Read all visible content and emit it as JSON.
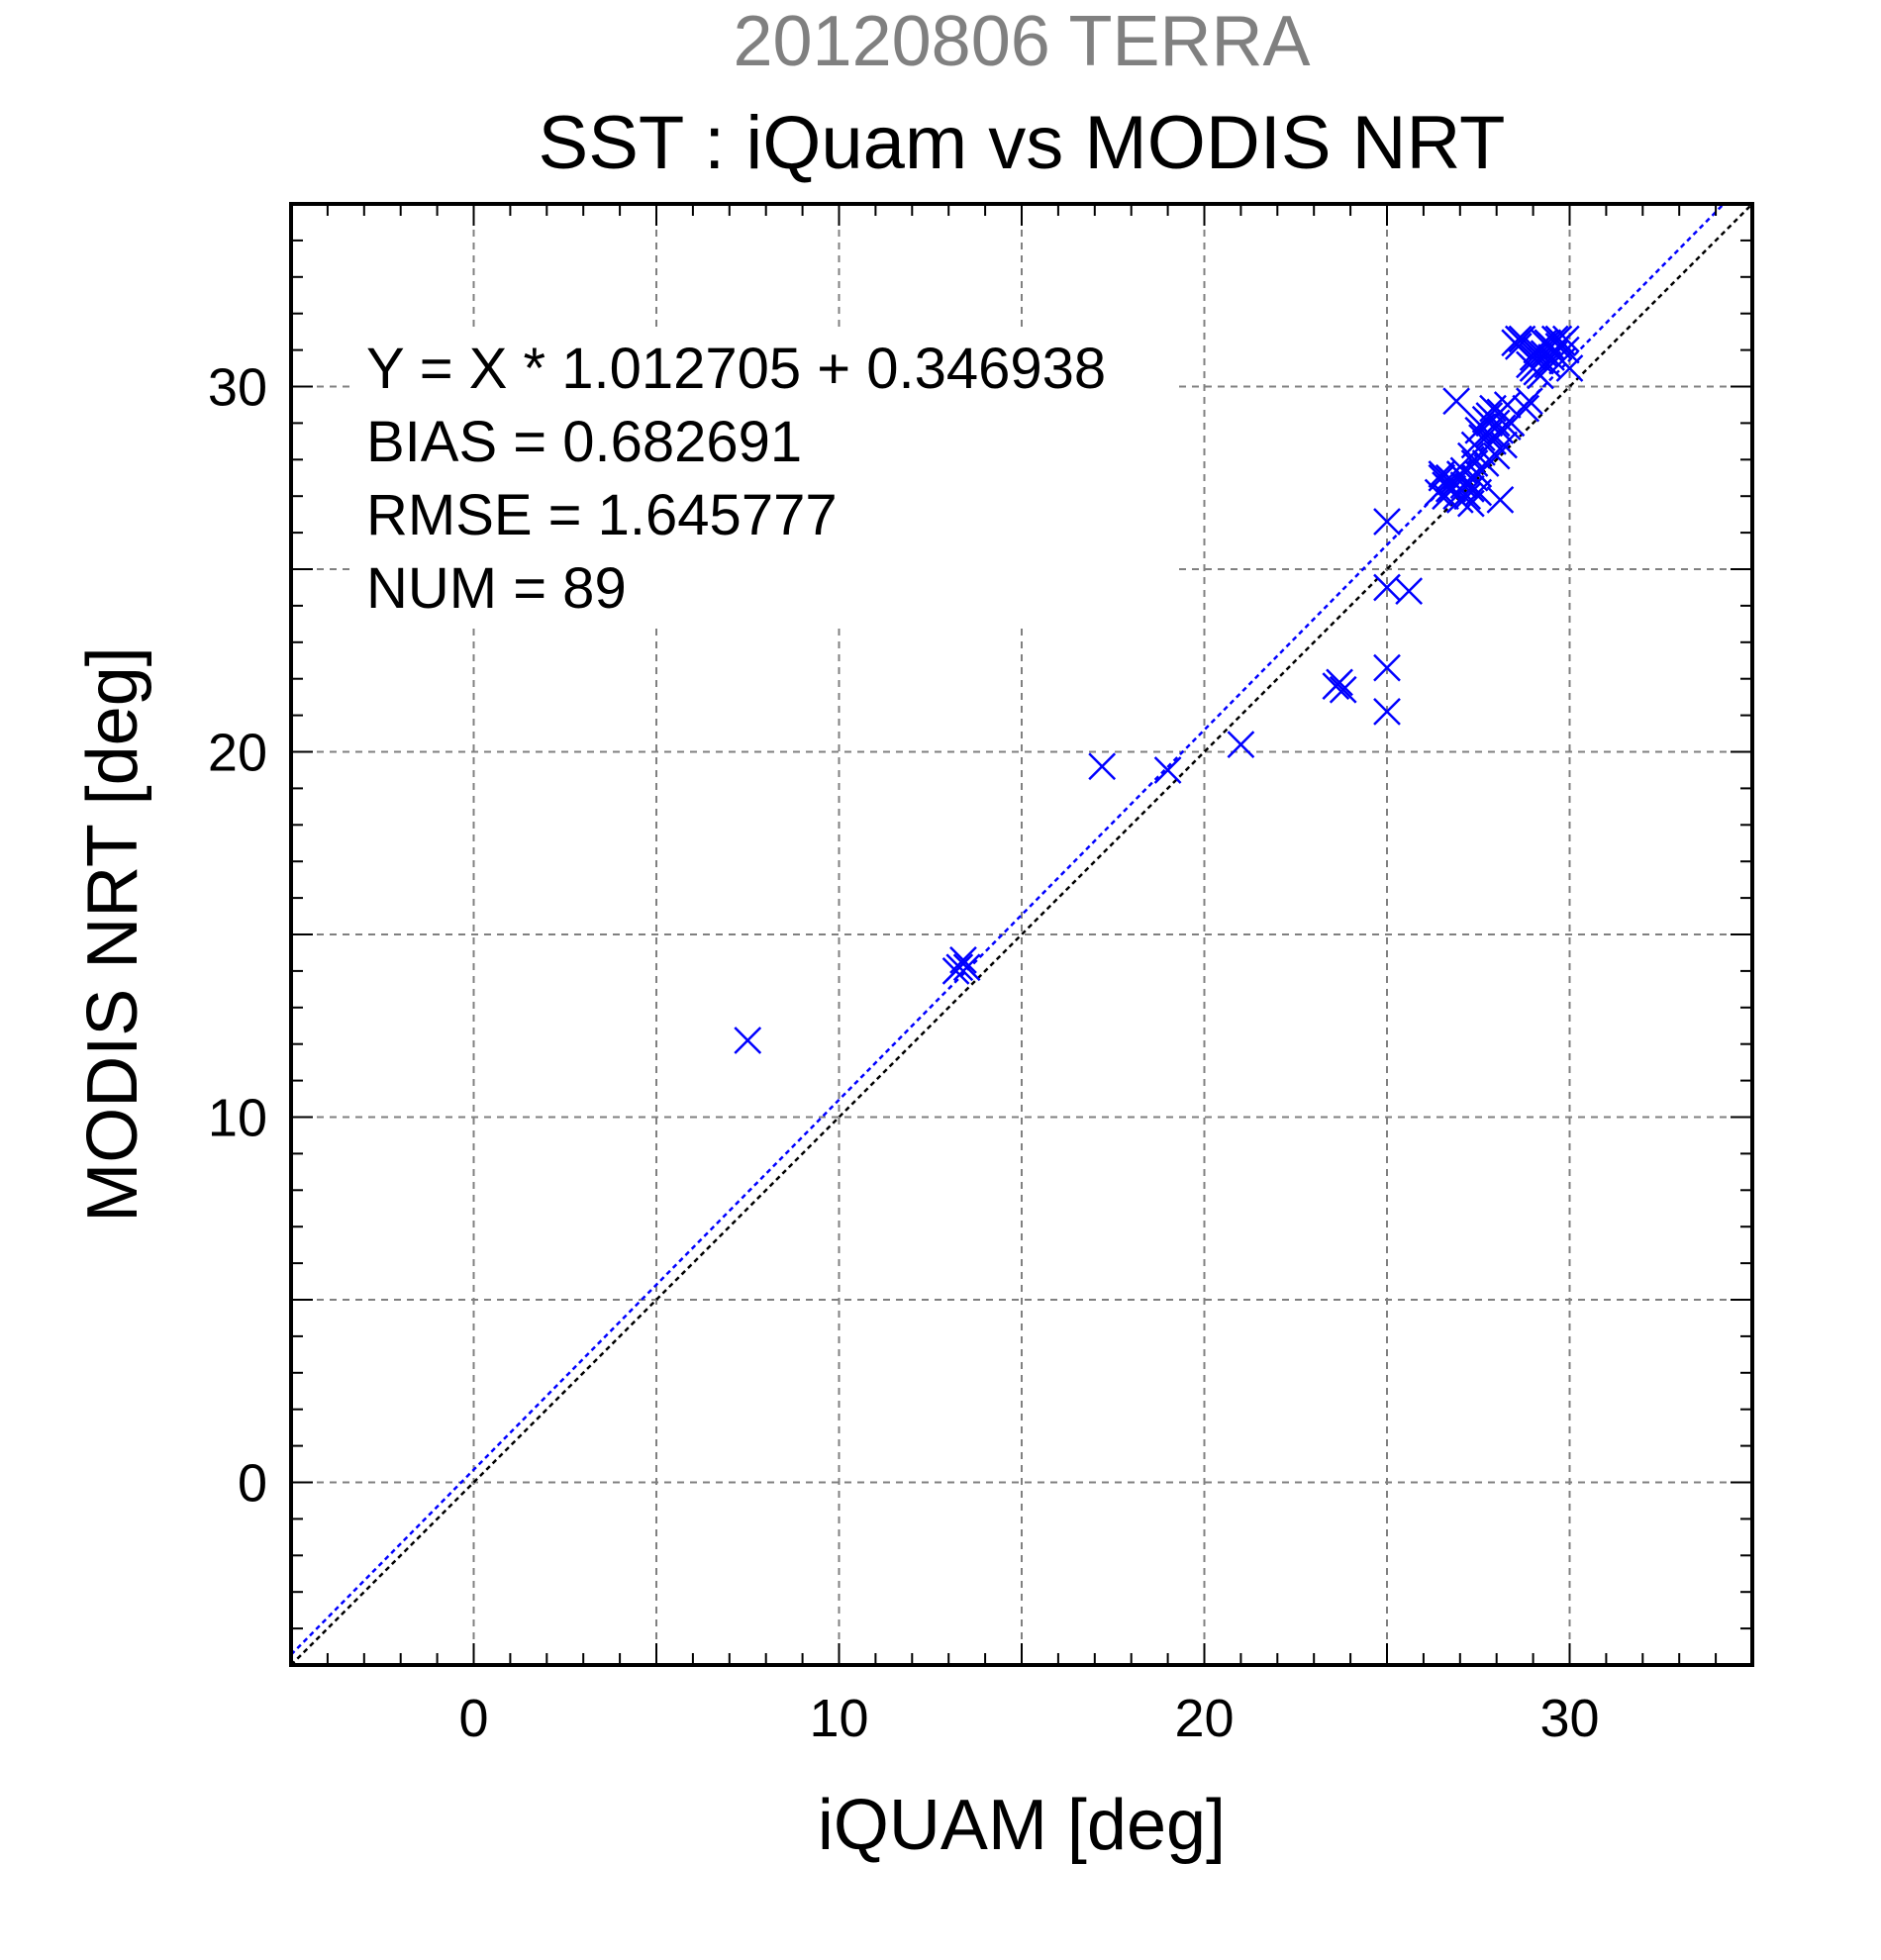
{
  "chart_data": {
    "type": "scatter",
    "supertitle": "20120806 TERRA",
    "title": "SST : iQuam vs MODIS NRT",
    "xlabel": "iQUAM [deg]",
    "ylabel": "MODIS NRT [deg]",
    "xlim": [
      -5,
      35
    ],
    "ylim": [
      -5,
      35
    ],
    "xticks": [
      0,
      10,
      20,
      30
    ],
    "yticks": [
      0,
      10,
      20,
      30
    ],
    "grid": true,
    "colors": {
      "points": "#0000ff",
      "fit_line": "#0000ff",
      "identity_line": "#000000",
      "supertitle": "#808080"
    },
    "stats": [
      "Y = X * 1.012705 + 0.346938",
      "BIAS = 0.682691",
      "RMSE = 1.645777",
      "NUM = 89"
    ],
    "fit": {
      "slope": 1.012705,
      "intercept": 0.346938
    },
    "points": [
      [
        7.5,
        12.1
      ],
      [
        13.2,
        14.0
      ],
      [
        13.4,
        14.3
      ],
      [
        13.3,
        14.1
      ],
      [
        13.5,
        14.1
      ],
      [
        17.2,
        19.6
      ],
      [
        19.0,
        19.5
      ],
      [
        21.0,
        20.2
      ],
      [
        23.6,
        21.8
      ],
      [
        23.8,
        21.7
      ],
      [
        23.7,
        21.9
      ],
      [
        25.0,
        26.3
      ],
      [
        25.0,
        24.5
      ],
      [
        25.6,
        24.4
      ],
      [
        25.0,
        22.3
      ],
      [
        25.0,
        21.1
      ],
      [
        26.4,
        27.1
      ],
      [
        26.5,
        27.5
      ],
      [
        26.6,
        27.3
      ],
      [
        26.7,
        27.5
      ],
      [
        26.8,
        27.2
      ],
      [
        26.9,
        27.0
      ],
      [
        26.9,
        29.6
      ],
      [
        27.0,
        27.6
      ],
      [
        27.1,
        27.3
      ],
      [
        27.2,
        27.0
      ],
      [
        27.3,
        27.2
      ],
      [
        27.3,
        28.1
      ],
      [
        27.4,
        27.5
      ],
      [
        27.4,
        28.4
      ],
      [
        27.5,
        28.8
      ],
      [
        27.5,
        27.1
      ],
      [
        27.6,
        28.6
      ],
      [
        27.6,
        28.9
      ],
      [
        27.7,
        29.1
      ],
      [
        27.7,
        27.9
      ],
      [
        27.8,
        28.7
      ],
      [
        27.8,
        29.2
      ],
      [
        27.9,
        29.4
      ],
      [
        28.0,
        28.1
      ],
      [
        28.0,
        29.0
      ],
      [
        28.1,
        26.9
      ],
      [
        28.1,
        29.3
      ],
      [
        28.2,
        28.4
      ],
      [
        28.3,
        29.5
      ],
      [
        28.4,
        29.0
      ],
      [
        28.5,
        31.2
      ],
      [
        28.6,
        31.1
      ],
      [
        28.7,
        31.3
      ],
      [
        28.8,
        29.4
      ],
      [
        28.9,
        29.6
      ],
      [
        29.0,
        30.5
      ],
      [
        29.0,
        30.8
      ],
      [
        29.1,
        31.0
      ],
      [
        29.2,
        30.7
      ],
      [
        29.2,
        30.3
      ],
      [
        29.3,
        30.9
      ],
      [
        29.4,
        30.6
      ],
      [
        29.4,
        31.2
      ],
      [
        29.5,
        31.1
      ],
      [
        29.6,
        30.9
      ],
      [
        29.6,
        31.3
      ],
      [
        29.7,
        31.1
      ],
      [
        29.8,
        31.2
      ],
      [
        29.9,
        31.0
      ],
      [
        30.0,
        30.5
      ],
      [
        26.6,
        27.0
      ],
      [
        26.8,
        27.4
      ],
      [
        27.0,
        26.9
      ],
      [
        27.1,
        27.7
      ],
      [
        27.2,
        27.4
      ],
      [
        27.5,
        27.6
      ],
      [
        27.6,
        28.2
      ],
      [
        27.9,
        28.5
      ],
      [
        28.1,
        28.8
      ],
      [
        28.3,
        28.9
      ],
      [
        28.9,
        30.6
      ],
      [
        29.1,
        30.4
      ],
      [
        29.3,
        31.2
      ],
      [
        29.5,
        30.8
      ],
      [
        29.7,
        31.3
      ],
      [
        29.8,
        30.7
      ],
      [
        26.5,
        27.6
      ],
      [
        26.7,
        27.2
      ],
      [
        27.3,
        26.8
      ],
      [
        27.4,
        27.9
      ],
      [
        27.8,
        29.0
      ],
      [
        28.6,
        31.3
      ],
      [
        29.9,
        31.3
      ]
    ]
  }
}
